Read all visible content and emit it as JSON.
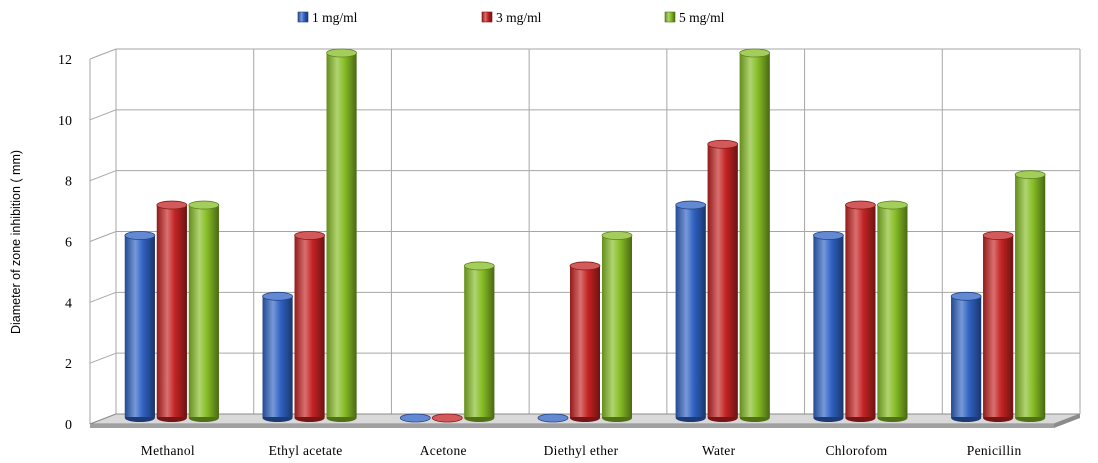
{
  "chart_data": {
    "type": "bar",
    "categories": [
      "Methanol",
      "Ethyl acetate",
      "Acetone",
      "Diethyl ether",
      "Water",
      "Chlorofom",
      "Penicillin"
    ],
    "series": [
      {
        "name": "1 mg/ml",
        "values": [
          6,
          4,
          0,
          0,
          7,
          6,
          4
        ],
        "color": "#2f62c3"
      },
      {
        "name": "3 mg/ml",
        "values": [
          7,
          6,
          0,
          5,
          9,
          7,
          6
        ],
        "color": "#c42323"
      },
      {
        "name": "5 mg/ml",
        "values": [
          7,
          12,
          5,
          6,
          12,
          7,
          8
        ],
        "color": "#86bd25"
      }
    ],
    "ylabel": "Diameter of zone inhibition ( mm)",
    "ylim": [
      0,
      12
    ],
    "yticks": [
      0,
      2,
      4,
      6,
      8,
      10,
      12
    ],
    "grid": true,
    "legend_position": "top"
  }
}
